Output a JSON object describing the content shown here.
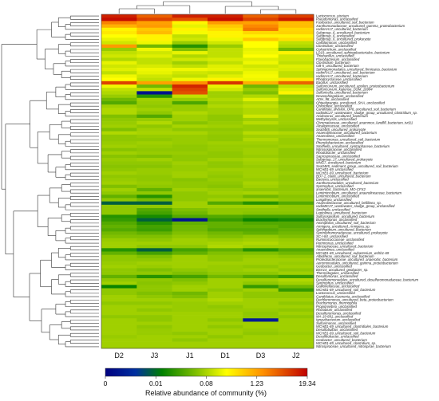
{
  "chart_data": {
    "type": "heatmap",
    "columns": [
      "D2",
      "J3",
      "J1",
      "D1",
      "D3",
      "J2"
    ],
    "rows": [
      "Lactococcus_piscium",
      "Pseudomonas_unclassified",
      "Fusibacter_uncultured_soil_bacterium",
      "Xanthomonadaceae_uncultured_gamma_proteobacterium",
      "vadinHA17_uncultured_bacterium",
      "Subgroup_6_uncultured_bacterium",
      "Subgroup_6_unclassified",
      "Subgroup_6_uncultured_prokaryote",
      "Cellulomonas_unclassified",
      "Clostridium_unclassified",
      "Coleotrichum_unclassified",
      "LD19_uncultured_sphingobacteriales_bacterium",
      "Thiobacillus_unclassified",
      "Flavobacterium_unclassified",
      "Clostridium_bacterium",
      "OB-5_uncultured_bacterium",
      "Sphingomonadales_uncultured_firmicutes_bacterium",
      "vadinHA17_uncultured_soil_bacterium",
      "vadinHA17_uncultured_bacterium",
      "Rhodocyclaceae_unclassified",
      "Bacillus_unclassified",
      "Sulfuricurvum_uncultured_epsilon_proteobacterium",
      "Sulfuricurvum_kujiense_DSM_16994",
      "Sulfuricella_uncultured_bacterium",
      "Novosphingobium_unclassified",
      "ADH_98_unclassified",
      "Ohtaekwangia_uncultured_SHA_unclassified",
      "Chloroflexi_unclassified",
      "Candidate_division_OP8_uncultured_soil_bacterium",
      "vadinBC27_wastewater_sludge_group_uncultured_clostridium_sp.",
      "Acidovorax_uncultured_bacterium",
      "Methylocystis_unclassified",
      "Chromatiaceae_uncultured_anammox_landfill_bacterium_tvd11",
      "Alcaligenaceae_unclassified",
      "Sva0485_uncultured_prokaryote",
      "Anaerolineaceae_uncultured_bacterium",
      "Anaerolinea_unclassified",
      "Thermomonas_uncultured_soil_bacterium",
      "Phenylobacterium_unclassified",
      "Smithella_uncultured_syntrophaceae_bacterium",
      "Nitrosospiraceae_unclassified",
      "Rhodobacter_unclassified",
      "Saprospiraceae_unclassified",
      "Subgroup_17_uncultured_prokaryote",
      "MNG7_uncultured_bacterium",
      "Sva0485_sediment_group_uncultured_soil_bacterium",
      "WCHB1-69_unclassified",
      "WCHB1-69_uncultured_bacterium",
      "BD7-1_clade_uncultured_bacterium",
      "Bacteria_unclassified",
      "Xanthomonadales_uncultured_bacterium",
      "Syntrophus_unclassified",
      "anaerobic_bacterium_MO-CFX2",
      "Lentimicrobium_uncultured_anaerolineaceae_bacterium",
      "Lentimicrobium_unclassified",
      "Longilinea_unclassified",
      "Anaerolineaceae_uncultured_bellilinea_sp.",
      "vadinBC27_wastewater_sludge_group_unclassified",
      "Smithella_unclassified",
      "Leptolinea_uncultured_bacterium",
      "Sulfurospirillum_uncultured_bacterium",
      "Brachymonas_unclassified",
      "Aminiphilus_uncultured_soil_bacterium",
      "Armigera_uncultured_Armigera_sp.",
      "Sphingobium_uncultured_bacterium",
      "Syntrophomonadaceae_uncultured_prokaryote",
      "SC-I-84_unclassified",
      "Ruminococcaceae_unclassified",
      "Petrimonas_unclassified",
      "Nitrospiraceae_uncultured_bacterium",
      "Anaerolinea_unclassified",
      "WCHB1-69_uncultured_eubacterium_wchb1-69",
      "Albidiferax_uncultured_soil_bacterium",
      "Proteobacteriaceae_uncultured_anaerobic_bacterium",
      "Aeromonadales_uncultured_gamma_proteobacterium",
      "Geobacter_unclassified",
      "BSV14_uncultured_geobacter_sp.",
      "Thermotogales_unclassified",
      "Desulfomonas_unclassified",
      "Desulfuromonadales_uncultured_desulfuromonadaceae_bacterium",
      "Syntrophus_unclassified",
      "Gallionellaceae_unclassified",
      "WCHB1-69_uncultured_soil_bacterium",
      "Lactococcus_unclassified",
      "Candidatus_Kuenenia_unclassified",
      "Dechloromonas_uncultured_beta_proteobacterium",
      "Brachymonas_thermophila",
      "Propionivibrio_unclassified",
      "Rhizobium_unclassified",
      "Desulfuromonas_unclassified",
      "MA-19-891_unclassified",
      "Ignavibacterium_unclassified",
      "Sulfurimonas_unclassified",
      "WCHB1-69_uncultured_clostridiales_bacterium",
      "Desulfobulbus_unclassified",
      "WCHB1-69_uncultured_soil_bacterium",
      "Desulfitobacter_unclassified",
      "Geobacter_uncultured_bacterium",
      "WCHB1-69_uncultured_clostridium_sp.",
      "Nitrospiraceae_uncultured_nitrospirae_bacterium"
    ],
    "values": [
      [
        9.5,
        8.5,
        9.5,
        9.5,
        8.5,
        9.0
      ],
      [
        9.8,
        9.0,
        8.8,
        9.8,
        9.0,
        9.6
      ],
      [
        8.0,
        7.5,
        6.0,
        7.6,
        7.5,
        7.0
      ],
      [
        7.2,
        7.6,
        5.5,
        6.8,
        7.9,
        7.0
      ],
      [
        6.0,
        6.8,
        6.0,
        6.4,
        8.2,
        6.5
      ],
      [
        6.2,
        7.0,
        5.7,
        6.0,
        6.5,
        6.6
      ],
      [
        5.8,
        6.0,
        5.0,
        6.0,
        6.0,
        6.0
      ],
      [
        5.5,
        6.0,
        5.2,
        5.6,
        6.8,
        6.4
      ],
      [
        5.2,
        5.6,
        4.5,
        5.2,
        5.8,
        5.0
      ],
      [
        7.6,
        4.0,
        3.0,
        4.5,
        5.8,
        4.8
      ],
      [
        4.5,
        5.6,
        4.2,
        5.0,
        5.5,
        4.0
      ],
      [
        5.0,
        5.2,
        5.5,
        5.0,
        5.6,
        6.0
      ],
      [
        5.2,
        5.4,
        4.8,
        5.0,
        5.8,
        5.2
      ],
      [
        4.8,
        5.0,
        5.2,
        5.3,
        5.4,
        5.2
      ],
      [
        5.5,
        5.0,
        4.6,
        5.0,
        5.6,
        5.0
      ],
      [
        5.2,
        5.3,
        5.0,
        5.4,
        5.2,
        5.4
      ],
      [
        5.4,
        5.6,
        5.6,
        5.5,
        5.4,
        5.3
      ],
      [
        5.0,
        5.5,
        5.2,
        5.1,
        5.6,
        5.0
      ],
      [
        5.6,
        5.2,
        5.0,
        5.4,
        5.7,
        5.0
      ],
      [
        5.8,
        5.0,
        5.6,
        6.0,
        5.6,
        6.2
      ],
      [
        9.0,
        7.5,
        7.8,
        9.2,
        7.2,
        8.5
      ],
      [
        5.6,
        4.0,
        9.4,
        5.5,
        4.0,
        5.0
      ],
      [
        5.0,
        5.0,
        9.0,
        5.2,
        4.5,
        5.4
      ],
      [
        4.8,
        0.5,
        8.8,
        4.6,
        4.2,
        6.0
      ],
      [
        4.5,
        3.0,
        5.0,
        4.6,
        4.8,
        4.4
      ],
      [
        4.0,
        4.6,
        4.5,
        4.8,
        5.4,
        4.5
      ],
      [
        3.6,
        4.5,
        3.5,
        4.6,
        4.8,
        4.2
      ],
      [
        4.6,
        4.4,
        4.5,
        4.8,
        5.0,
        4.6
      ],
      [
        4.8,
        4.6,
        4.5,
        4.6,
        4.8,
        4.6
      ],
      [
        4.8,
        4.4,
        4.8,
        4.6,
        4.8,
        4.7
      ],
      [
        4.2,
        3.6,
        4.6,
        4.4,
        5.2,
        4.6
      ],
      [
        4.4,
        4.5,
        4.6,
        4.4,
        4.6,
        4.6
      ],
      [
        4.5,
        4.8,
        4.3,
        4.5,
        4.9,
        4.6
      ],
      [
        4.6,
        4.4,
        4.7,
        4.6,
        4.5,
        4.5
      ],
      [
        4.2,
        4.6,
        4.4,
        4.4,
        4.5,
        4.4
      ],
      [
        4.8,
        4.7,
        4.7,
        4.5,
        4.9,
        4.8
      ],
      [
        4.4,
        4.5,
        4.5,
        4.4,
        4.6,
        4.6
      ],
      [
        4.4,
        4.4,
        4.5,
        4.4,
        4.8,
        4.5
      ],
      [
        4.5,
        4.6,
        4.5,
        4.6,
        4.6,
        4.5
      ],
      [
        4.6,
        4.5,
        4.4,
        4.5,
        4.5,
        4.6
      ],
      [
        4.3,
        4.4,
        4.4,
        4.5,
        4.6,
        4.4
      ],
      [
        4.6,
        4.5,
        4.5,
        4.4,
        4.6,
        4.4
      ],
      [
        4.3,
        4.2,
        4.4,
        4.4,
        4.5,
        4.4
      ],
      [
        4.5,
        4.6,
        4.4,
        4.6,
        4.7,
        4.5
      ],
      [
        4.4,
        4.4,
        4.6,
        4.4,
        4.6,
        4.5
      ],
      [
        4.3,
        4.3,
        4.5,
        4.4,
        4.5,
        4.4
      ],
      [
        4.4,
        4.5,
        4.5,
        4.6,
        4.6,
        4.4
      ],
      [
        4.6,
        4.5,
        4.6,
        4.5,
        4.6,
        4.5
      ],
      [
        4.4,
        4.4,
        4.6,
        4.4,
        4.6,
        4.4
      ],
      [
        4.5,
        4.4,
        4.3,
        4.5,
        4.5,
        4.4
      ],
      [
        4.6,
        4.5,
        4.4,
        4.4,
        4.7,
        4.5
      ],
      [
        4.2,
        4.4,
        4.4,
        4.3,
        4.6,
        4.4
      ],
      [
        4.6,
        3.8,
        4.6,
        4.5,
        4.4,
        4.4
      ],
      [
        4.4,
        4.4,
        4.4,
        4.6,
        4.7,
        4.5
      ],
      [
        3.8,
        3.0,
        4.4,
        4.4,
        4.0,
        4.3
      ],
      [
        4.4,
        4.1,
        4.4,
        4.6,
        4.6,
        4.4
      ],
      [
        2.0,
        2.0,
        4.6,
        3.6,
        3.0,
        3.6
      ],
      [
        4.4,
        4.4,
        4.6,
        4.6,
        4.6,
        4.4
      ],
      [
        4.4,
        3.6,
        4.2,
        4.4,
        4.4,
        4.4
      ],
      [
        4.4,
        3.4,
        4.0,
        4.4,
        4.3,
        4.3
      ],
      [
        3.0,
        2.8,
        3.6,
        3.6,
        3.4,
        3.4
      ],
      [
        3.2,
        2.0,
        0.6,
        3.2,
        2.6,
        2.8
      ],
      [
        3.6,
        3.0,
        3.8,
        3.8,
        3.6,
        3.6
      ],
      [
        3.8,
        3.4,
        4.0,
        3.8,
        3.8,
        3.6
      ],
      [
        3.6,
        3.3,
        4.0,
        3.6,
        3.6,
        3.8
      ],
      [
        4.0,
        3.8,
        4.2,
        4.0,
        3.8,
        4.0
      ],
      [
        4.2,
        4.2,
        4.4,
        4.2,
        4.4,
        4.2
      ],
      [
        4.5,
        4.4,
        4.6,
        4.5,
        4.6,
        4.5
      ],
      [
        4.6,
        4.6,
        4.6,
        4.7,
        4.8,
        4.6
      ],
      [
        4.6,
        4.4,
        4.4,
        4.8,
        4.6,
        4.6
      ],
      [
        3.0,
        2.0,
        3.4,
        3.8,
        3.0,
        3.6
      ],
      [
        3.8,
        3.4,
        3.8,
        4.2,
        4.2,
        4.0
      ],
      [
        4.4,
        4.2,
        4.6,
        4.4,
        4.5,
        4.4
      ],
      [
        4.4,
        4.4,
        4.6,
        4.4,
        4.6,
        4.6
      ],
      [
        4.5,
        4.6,
        4.6,
        4.6,
        4.6,
        4.5
      ],
      [
        4.6,
        4.5,
        4.6,
        4.5,
        4.4,
        4.6
      ],
      [
        4.4,
        4.2,
        4.4,
        4.5,
        4.6,
        4.4
      ],
      [
        4.4,
        4.4,
        4.2,
        4.4,
        4.4,
        4.6
      ],
      [
        3.8,
        3.0,
        3.4,
        4.0,
        3.6,
        3.2
      ],
      [
        4.4,
        4.4,
        4.2,
        4.6,
        4.6,
        4.8
      ],
      [
        4.6,
        4.3,
        4.4,
        4.6,
        4.4,
        4.6
      ],
      [
        2.6,
        4.4,
        4.6,
        4.6,
        3.2,
        4.0
      ],
      [
        4.4,
        4.4,
        4.6,
        4.4,
        4.6,
        3.2
      ],
      [
        4.4,
        4.2,
        4.0,
        4.6,
        4.4,
        4.4
      ],
      [
        4.6,
        4.4,
        4.2,
        4.6,
        4.4,
        4.4
      ],
      [
        4.6,
        4.6,
        4.6,
        4.8,
        4.6,
        4.6
      ],
      [
        4.4,
        4.4,
        4.5,
        4.6,
        4.6,
        4.4
      ],
      [
        4.6,
        4.6,
        4.5,
        4.4,
        4.6,
        4.6
      ],
      [
        4.6,
        4.4,
        4.5,
        4.5,
        4.5,
        4.4
      ],
      [
        4.6,
        4.6,
        4.6,
        4.6,
        4.4,
        4.6
      ],
      [
        4.4,
        4.4,
        4.6,
        4.6,
        4.4,
        4.4
      ],
      [
        4.6,
        4.4,
        4.6,
        4.4,
        0.8,
        4.6
      ],
      [
        4.6,
        4.6,
        4.6,
        4.6,
        4.6,
        4.6
      ],
      [
        4.6,
        4.4,
        4.6,
        4.4,
        4.6,
        4.6
      ],
      [
        4.6,
        4.5,
        4.6,
        4.6,
        4.5,
        4.6
      ],
      [
        4.6,
        4.5,
        4.4,
        4.6,
        4.4,
        4.5
      ],
      [
        4.5,
        4.6,
        4.6,
        4.4,
        4.6,
        4.6
      ],
      [
        4.6,
        4.6,
        4.4,
        4.6,
        4.6,
        4.6
      ],
      [
        4.6,
        4.6,
        4.6,
        4.6,
        4.6,
        4.6
      ],
      [
        4.6,
        4.6,
        4.6,
        4.6,
        4.6,
        4.6
      ]
    ],
    "scale_ticks": [
      "0",
      "0.01",
      "0.08",
      "1.23",
      "19.34"
    ],
    "color_scale": {
      "low": "#000080",
      "mid_low": "#00a000",
      "mid": "#ffff00",
      "mid_high": "#ff8000",
      "high": "#c00000"
    },
    "legend_title": "Relative abundance of community (%)",
    "grid": false,
    "legend_position": "bottom"
  }
}
